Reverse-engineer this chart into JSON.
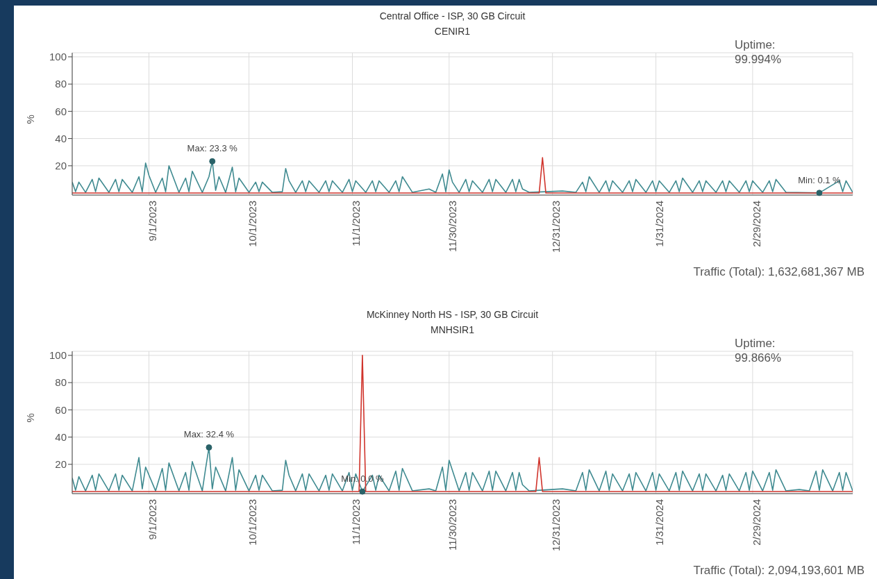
{
  "chart_data": [
    {
      "type": "line",
      "title": "Central Office - ISP, 30 GB Circuit",
      "subtitle": "CENIR1",
      "ylabel": "%",
      "xlim": [
        "2023-08-09",
        "2024-03-30"
      ],
      "ylim": [
        -1.5,
        103
      ],
      "yticks": [
        20,
        40,
        60,
        80,
        100
      ],
      "xticks": [
        {
          "value": "2023-09-01",
          "label": "9/1/2023"
        },
        {
          "value": "2023-10-01",
          "label": "10/1/2023"
        },
        {
          "value": "2023-11-01",
          "label": "11/1/2023"
        },
        {
          "value": "2023-11-30",
          "label": "11/30/2023"
        },
        {
          "value": "2023-12-31",
          "label": "12/31/2023"
        },
        {
          "value": "2024-01-31",
          "label": "1/31/2024"
        },
        {
          "value": "2024-02-29",
          "label": "2/29/2024"
        }
      ],
      "grid": true,
      "series": [
        {
          "color": "#3f8a90",
          "x": [
            "2023-08-09",
            "2023-08-10",
            "2023-08-11",
            "2023-08-13",
            "2023-08-15",
            "2023-08-16",
            "2023-08-17",
            "2023-08-20",
            "2023-08-22",
            "2023-08-23",
            "2023-08-24",
            "2023-08-27",
            "2023-08-29",
            "2023-08-30",
            "2023-08-31",
            "2023-09-01",
            "2023-09-03",
            "2023-09-05",
            "2023-09-06",
            "2023-09-07",
            "2023-09-10",
            "2023-09-12",
            "2023-09-13",
            "2023-09-14",
            "2023-09-17",
            "2023-09-19",
            "2023-09-20",
            "2023-09-21",
            "2023-09-22",
            "2023-09-24",
            "2023-09-26",
            "2023-09-27",
            "2023-09-28",
            "2023-10-01",
            "2023-10-03",
            "2023-10-04",
            "2023-10-05",
            "2023-10-08",
            "2023-10-11",
            "2023-10-12",
            "2023-10-13",
            "2023-10-15",
            "2023-10-17",
            "2023-10-18",
            "2023-10-19",
            "2023-10-22",
            "2023-10-24",
            "2023-10-25",
            "2023-10-26",
            "2023-10-29",
            "2023-10-31",
            "2023-11-01",
            "2023-11-02",
            "2023-11-05",
            "2023-11-07",
            "2023-11-08",
            "2023-11-09",
            "2023-11-12",
            "2023-11-14",
            "2023-11-15",
            "2023-11-16",
            "2023-11-19",
            "2023-11-24",
            "2023-11-26",
            "2023-11-28",
            "2023-11-29",
            "2023-11-30",
            "2023-12-01",
            "2023-12-03",
            "2023-12-05",
            "2023-12-06",
            "2023-12-07",
            "2023-12-10",
            "2023-12-12",
            "2023-12-13",
            "2023-12-14",
            "2023-12-17",
            "2023-12-19",
            "2023-12-20",
            "2023-12-21",
            "2023-12-22",
            "2023-12-24",
            "2024-01-03",
            "2024-01-07",
            "2024-01-09",
            "2024-01-10",
            "2024-01-11",
            "2024-01-14",
            "2024-01-16",
            "2024-01-17",
            "2024-01-18",
            "2024-01-21",
            "2024-01-23",
            "2024-01-24",
            "2024-01-25",
            "2024-01-28",
            "2024-01-30",
            "2024-01-31",
            "2024-02-01",
            "2024-02-04",
            "2024-02-06",
            "2024-02-07",
            "2024-02-08",
            "2024-02-11",
            "2024-02-13",
            "2024-02-14",
            "2024-02-15",
            "2024-02-18",
            "2024-02-20",
            "2024-02-21",
            "2024-02-22",
            "2024-02-25",
            "2024-02-27",
            "2024-02-28",
            "2024-02-29",
            "2024-03-03",
            "2024-03-05",
            "2024-03-06",
            "2024-03-07",
            "2024-03-10",
            "2024-03-20",
            "2024-03-26",
            "2024-03-27",
            "2024-03-28",
            "2024-03-30"
          ],
          "values": [
            8,
            1,
            8,
            0.5,
            10,
            1,
            11,
            0.5,
            10,
            1,
            10,
            0.5,
            12,
            1,
            22,
            13,
            0.5,
            11,
            1,
            20,
            0.5,
            11,
            1,
            16,
            0.5,
            12,
            23.3,
            2,
            12,
            0.5,
            19,
            1,
            11,
            0.5,
            8,
            1,
            8,
            0.5,
            1,
            18,
            9,
            0.5,
            9,
            1,
            9,
            0.5,
            9,
            1,
            9,
            0.5,
            10,
            1,
            9,
            0.5,
            9,
            1,
            9,
            0.5,
            9,
            1,
            12,
            0.5,
            3,
            0.5,
            14,
            1,
            17,
            8,
            0.5,
            10,
            1,
            9,
            0.5,
            10,
            1,
            10,
            0.5,
            10,
            1,
            10,
            3,
            0.5,
            1.5,
            0.5,
            8,
            1,
            12,
            0.5,
            9,
            1,
            9,
            0.5,
            9,
            1,
            10,
            0.5,
            9,
            1,
            9,
            0.5,
            9,
            1,
            11,
            0.5,
            9,
            1,
            9,
            0.5,
            9,
            1,
            9,
            0.5,
            9,
            1,
            9,
            0.5,
            9,
            1,
            10,
            0.5,
            0.1,
            9,
            1,
            9,
            0.5
          ]
        },
        {
          "color": "#d0342c",
          "x": [
            "2023-08-09",
            "2023-12-27",
            "2023-12-28",
            "2023-12-29",
            "2024-03-30"
          ],
          "values": [
            0,
            0,
            26,
            0,
            0
          ]
        }
      ],
      "annotations": [
        "Uptime: 99.994%",
        "Traffic (Total): 1,632,681,367 MB",
        {
          "text": "Max: 23.3 %",
          "x": "2023-09-20",
          "y": 23.3
        },
        {
          "text": "Min: 0.1 %",
          "x": "2024-03-20",
          "y": 0.1
        }
      ]
    },
    {
      "type": "line",
      "title": "McKinney North HS - ISP, 30 GB Circuit",
      "subtitle": "MNHSIR1",
      "ylabel": "%",
      "xlim": [
        "2023-08-09",
        "2024-03-30"
      ],
      "ylim": [
        -1.5,
        103
      ],
      "yticks": [
        20,
        40,
        60,
        80,
        100
      ],
      "xticks": [
        {
          "value": "2023-09-01",
          "label": "9/1/2023"
        },
        {
          "value": "2023-10-01",
          "label": "10/1/2023"
        },
        {
          "value": "2023-11-01",
          "label": "11/1/2023"
        },
        {
          "value": "2023-11-30",
          "label": "11/30/2023"
        },
        {
          "value": "2023-12-31",
          "label": "12/31/2023"
        },
        {
          "value": "2024-01-31",
          "label": "1/31/2024"
        },
        {
          "value": "2024-02-29",
          "label": "2/29/2024"
        }
      ],
      "grid": true,
      "series": [
        {
          "color": "#3f8a90",
          "x": [
            "2023-08-09",
            "2023-08-10",
            "2023-08-11",
            "2023-08-13",
            "2023-08-15",
            "2023-08-16",
            "2023-08-17",
            "2023-08-20",
            "2023-08-22",
            "2023-08-23",
            "2023-08-24",
            "2023-08-27",
            "2023-08-29",
            "2023-08-30",
            "2023-08-31",
            "2023-09-03",
            "2023-09-05",
            "2023-09-06",
            "2023-09-07",
            "2023-09-10",
            "2023-09-12",
            "2023-09-13",
            "2023-09-14",
            "2023-09-17",
            "2023-09-18",
            "2023-09-19",
            "2023-09-20",
            "2023-09-21",
            "2023-09-24",
            "2023-09-26",
            "2023-09-27",
            "2023-09-28",
            "2023-10-01",
            "2023-10-03",
            "2023-10-04",
            "2023-10-05",
            "2023-10-08",
            "2023-10-11",
            "2023-10-12",
            "2023-10-13",
            "2023-10-15",
            "2023-10-17",
            "2023-10-18",
            "2023-10-19",
            "2023-10-22",
            "2023-10-24",
            "2023-10-25",
            "2023-10-26",
            "2023-10-29",
            "2023-10-31",
            "2023-11-01",
            "2023-11-02",
            "2023-11-04",
            "2023-11-07",
            "2023-11-08",
            "2023-11-09",
            "2023-11-12",
            "2023-11-14",
            "2023-11-15",
            "2023-11-16",
            "2023-11-19",
            "2023-11-24",
            "2023-11-26",
            "2023-11-28",
            "2023-11-29",
            "2023-11-30",
            "2023-12-03",
            "2023-12-05",
            "2023-12-06",
            "2023-12-07",
            "2023-12-10",
            "2023-12-12",
            "2023-12-13",
            "2023-12-14",
            "2023-12-17",
            "2023-12-19",
            "2023-12-20",
            "2023-12-21",
            "2023-12-22",
            "2023-12-24",
            "2024-01-03",
            "2024-01-07",
            "2024-01-09",
            "2024-01-10",
            "2024-01-11",
            "2024-01-14",
            "2024-01-16",
            "2024-01-17",
            "2024-01-18",
            "2024-01-21",
            "2024-01-23",
            "2024-01-24",
            "2024-01-25",
            "2024-01-28",
            "2024-01-30",
            "2024-01-31",
            "2024-02-01",
            "2024-02-04",
            "2024-02-06",
            "2024-02-07",
            "2024-02-08",
            "2024-02-11",
            "2024-02-13",
            "2024-02-14",
            "2024-02-15",
            "2024-02-18",
            "2024-02-20",
            "2024-02-21",
            "2024-02-22",
            "2024-02-25",
            "2024-02-27",
            "2024-02-28",
            "2024-02-29",
            "2024-03-03",
            "2024-03-05",
            "2024-03-06",
            "2024-03-07",
            "2024-03-10",
            "2024-03-14",
            "2024-03-17",
            "2024-03-19",
            "2024-03-20",
            "2024-03-21",
            "2024-03-24",
            "2024-03-26",
            "2024-03-27",
            "2024-03-28",
            "2024-03-30"
          ],
          "values": [
            10,
            1,
            11,
            0.5,
            12,
            1,
            13,
            0.5,
            13,
            1,
            12,
            0.5,
            25,
            2,
            18,
            0.5,
            17,
            1,
            21,
            0.5,
            14,
            1,
            22,
            0.5,
            17,
            32.4,
            2,
            18,
            0.5,
            25,
            1,
            16,
            0.5,
            12,
            1,
            12,
            0.5,
            1,
            23,
            12,
            0.5,
            13,
            1,
            13,
            0.5,
            12,
            1,
            13,
            0.5,
            14,
            1,
            13,
            0,
            12,
            1,
            12,
            0.5,
            15,
            1,
            17,
            0.5,
            2,
            0.5,
            18,
            1,
            23,
            0.5,
            14,
            1,
            14,
            0.5,
            15,
            1,
            15,
            0.5,
            14,
            1,
            14,
            5,
            0.5,
            2,
            0.5,
            14,
            1,
            16,
            0.5,
            15,
            1,
            13,
            0.5,
            13,
            1,
            14,
            0.5,
            14,
            1,
            13,
            0.5,
            14,
            1,
            15,
            0.5,
            13,
            1,
            13,
            0.5,
            12,
            1,
            13,
            0.5,
            14,
            1,
            15,
            0.5,
            14,
            1,
            16,
            0.5,
            1.5,
            0.5,
            15,
            1,
            16,
            0.5,
            14,
            1,
            14,
            0.5
          ]
        },
        {
          "color": "#d0342c",
          "x": [
            "2023-08-09",
            "2023-11-03",
            "2023-11-04",
            "2023-11-05",
            "2023-12-26",
            "2023-12-27",
            "2023-12-28",
            "2024-03-30"
          ],
          "values": [
            0,
            0,
            100,
            0,
            0,
            25,
            0,
            0
          ]
        }
      ],
      "annotations": [
        "Uptime: 99.866%",
        "Traffic (Total): 2,094,193,601 MB",
        {
          "text": "Max: 32.4 %",
          "x": "2023-09-19",
          "y": 32.4
        },
        {
          "text": "Min: 0.0 %",
          "x": "2023-11-04",
          "y": 0
        }
      ]
    }
  ]
}
